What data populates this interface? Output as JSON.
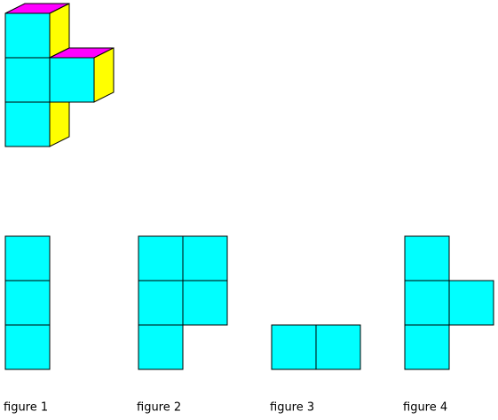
{
  "figures": [
    {
      "label": "figure 1"
    },
    {
      "label": "figure 2"
    },
    {
      "label": "figure 3"
    },
    {
      "label": "figure 4"
    }
  ]
}
